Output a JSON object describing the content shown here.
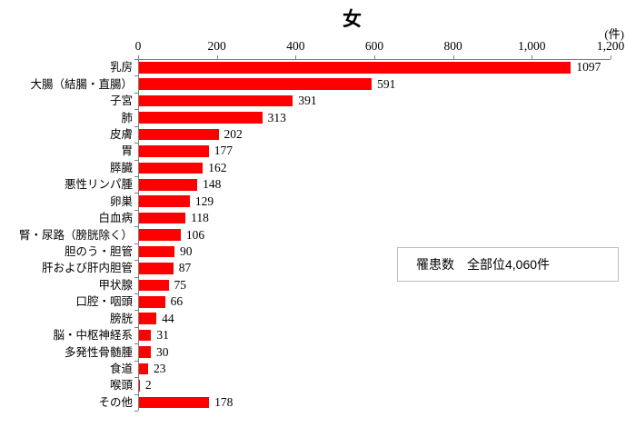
{
  "chart_data": {
    "type": "bar",
    "orientation": "horizontal",
    "title": "女",
    "unit_label": "(件)",
    "xlabel": "",
    "ylabel": "",
    "xlim": [
      0,
      1200
    ],
    "x_tick_values": [
      0,
      200,
      400,
      600,
      800,
      1000,
      1200
    ],
    "x_tick_labels": [
      "0",
      "200",
      "400",
      "600",
      "800",
      "1,000",
      "1,200"
    ],
    "grid": false,
    "legend": false,
    "categories": [
      "乳房",
      "大腸（結腸・直腸）",
      "子宮",
      "肺",
      "皮膚",
      "胃",
      "膵臓",
      "悪性リンパ腫",
      "卵巣",
      "白血病",
      "腎・尿路（膀胱除く）",
      "胆のう・胆管",
      "肝および肝内胆管",
      "甲状腺",
      "口腔・咽頭",
      "膀胱",
      "脳・中枢神経系",
      "多発性骨髄腫",
      "食道",
      "喉頭",
      "その他"
    ],
    "values": [
      1097,
      591,
      391,
      313,
      202,
      177,
      162,
      148,
      129,
      118,
      106,
      90,
      87,
      75,
      66,
      44,
      31,
      30,
      23,
      2,
      178
    ],
    "value_labels": [
      "1097",
      "591",
      "391",
      "313",
      "202",
      "177",
      "162",
      "148",
      "129",
      "118",
      "106",
      "90",
      "87",
      "75",
      "66",
      "44",
      "31",
      "30",
      "23",
      "2",
      "178"
    ]
  },
  "annotation": {
    "text": "罹患数　全部位4,060件"
  },
  "colors": {
    "bar": "#ff0000",
    "axis_line": "#808080",
    "annotation_border": "#bfbfbf",
    "text": "#000000"
  }
}
